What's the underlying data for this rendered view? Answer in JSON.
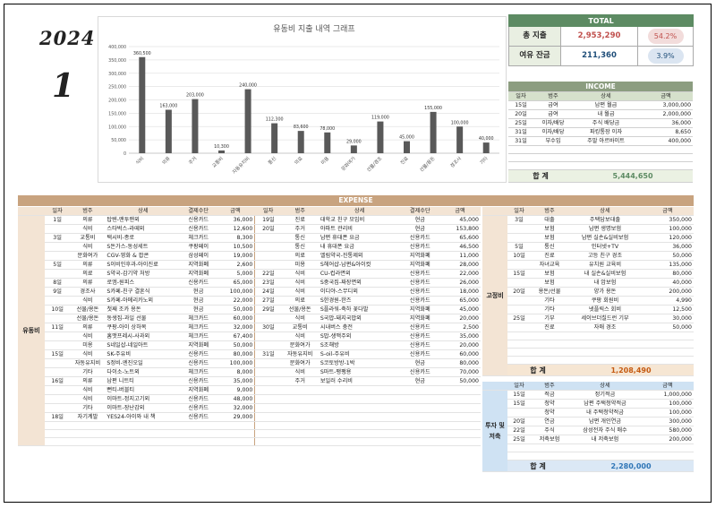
{
  "header": {
    "year": "2024",
    "month": "1"
  },
  "chart_data": {
    "type": "bar",
    "title": "유동비 지출 내역 그래프",
    "categories": [
      "식비",
      "의류",
      "주거",
      "교통비",
      "자동유지비",
      "통신",
      "의료",
      "미용",
      "문화여가",
      "선물/경조",
      "진료",
      "선물/용돈",
      "경조사",
      "기타"
    ],
    "values": [
      360500,
      163000,
      203000,
      10300,
      240000,
      112300,
      83600,
      78000,
      29000,
      119000,
      45000,
      155000,
      100000,
      40000
    ],
    "value_labels": [
      "360,500",
      "163,000",
      "203,000",
      "10,300",
      "240,000",
      "112,300",
      "83,600",
      "78,000",
      "29,000",
      "119,000",
      "45,000",
      "155,000",
      "100,000",
      "40,000"
    ],
    "yticks": [
      "0",
      "50,000",
      "100,000",
      "150,000",
      "200,000",
      "250,000",
      "300,000",
      "350,000",
      "400,000"
    ],
    "ylim": [
      0,
      400000
    ],
    "bar_color": "#595959",
    "grid": true
  },
  "total": {
    "title": "TOTAL",
    "rows": [
      {
        "label": "총 지출",
        "amount": "2,953,290",
        "pct": "54.2%",
        "amount_color": "#c0504d",
        "pill_color": "#f2dcdb"
      },
      {
        "label": "여유 잔금",
        "amount": "211,360",
        "pct": "3.9%",
        "amount_color": "#1f4e79",
        "pill_color": "#dbe5f1"
      }
    ]
  },
  "income": {
    "title": "INCOME",
    "cols": [
      "일자",
      "범주",
      "상세",
      "금액"
    ],
    "rows": [
      [
        "15일",
        "급여",
        "남편 월급",
        "3,000,000"
      ],
      [
        "20일",
        "급여",
        "내 월급",
        "2,000,000"
      ],
      [
        "25일",
        "이자/배당",
        "주식 배당금",
        "36,000"
      ],
      [
        "31일",
        "이자/배당",
        "파킹통장 이자",
        "8,650"
      ],
      [
        "31일",
        "부수입",
        "주말 아르바이트",
        "400,000"
      ],
      [
        "",
        "",
        "",
        ""
      ],
      [
        "",
        "",
        "",
        ""
      ],
      [
        "",
        "",
        "",
        ""
      ]
    ],
    "total_label": "합  계",
    "total_value": "5,444,650"
  },
  "expense": {
    "title": "EXPENSE",
    "category": "유동비",
    "cols": [
      "일자",
      "범주",
      "상세",
      "결제수단",
      "금액"
    ],
    "left": [
      [
        "1일",
        "의류",
        "탑텐-맨투맨외",
        "신용카드",
        "36,000"
      ],
      [
        "",
        "식비",
        "스타벅스-라떼외",
        "신용카드",
        "12,600"
      ],
      [
        "3일",
        "교통비",
        "택시비-종로",
        "체크카드",
        "8,300"
      ],
      [
        "",
        "식비",
        "S돈가스-동성세트",
        "쿠팡페이",
        "10,500"
      ],
      [
        "",
        "문화여가",
        "CGV-영화 & 팝콘",
        "삼성페이",
        "19,000"
      ],
      [
        "5일",
        "의류",
        "S이비인후과-아이진료",
        "지역화폐",
        "2,600"
      ],
      [
        "",
        "의료",
        "S약국-감기약 처방",
        "지역화폐",
        "5,000"
      ],
      [
        "8일",
        "의류",
        "로엠-원피스",
        "신용카드",
        "65,000"
      ],
      [
        "9일",
        "경조사",
        "S카페-친구 결혼식",
        "현금",
        "100,000"
      ],
      [
        "",
        "식비",
        "S카페-아메리카노외",
        "현금",
        "22,000"
      ],
      [
        "10일",
        "선물/용돈",
        "첫째 조카 용돈",
        "현금",
        "50,000"
      ],
      [
        "",
        "선물/용돈",
        "동생집-과일 선물",
        "체크카드",
        "60,000"
      ],
      [
        "11일",
        "의류",
        "쿠팡-아이 상하복",
        "체크카드",
        "32,000"
      ],
      [
        "",
        "식비",
        "홈맷프레시-사과외",
        "체크카드",
        "67,400"
      ],
      [
        "",
        "미용",
        "S네일샵-네일아트",
        "지역화폐",
        "50,000"
      ],
      [
        "15일",
        "식비",
        "SK-주유비",
        "신용카드",
        "80,000"
      ],
      [
        "",
        "자동유지비",
        "S정비-엔진오일",
        "신용카드",
        "100,000"
      ],
      [
        "",
        "기타",
        "다이소-노트외",
        "체크카드",
        "8,000"
      ],
      [
        "16일",
        "의류",
        "남편 니트티",
        "신용카드",
        "35,000"
      ],
      [
        "",
        "식비",
        "뻔티-버블티",
        "지역화폐",
        "9,000"
      ],
      [
        "",
        "식비",
        "이마트-정지고기외",
        "신용카드",
        "48,000"
      ],
      [
        "",
        "기타",
        "이마트-장난감외",
        "신용카드",
        "32,000"
      ],
      [
        "18일",
        "자기계발",
        "YES24-아이와 내 책",
        "신용카드",
        "29,000"
      ],
      [
        "",
        "",
        "",
        "",
        ""
      ],
      [
        "",
        "",
        "",
        "",
        ""
      ],
      [
        "",
        "",
        "",
        "",
        ""
      ]
    ],
    "right": [
      [
        "19일",
        "진료",
        "대학교 친구 모임비",
        "현금",
        "45,000"
      ],
      [
        "20일",
        "주거",
        "아파트 관리비",
        "현금",
        "153,800"
      ],
      [
        "",
        "통신",
        "남편 휴대폰 요금",
        "신용카드",
        "65,600"
      ],
      [
        "",
        "통신",
        "내 휴대폰 요금",
        "신용카드",
        "46,500"
      ],
      [
        "",
        "의료",
        "엘림약국-진통제외",
        "지역화폐",
        "11,000"
      ],
      [
        "",
        "미용",
        "S헤어샵-남편&아이컷",
        "지역화폐",
        "28,000"
      ],
      [
        "22일",
        "식비",
        "CU-컵라면외",
        "신용카드",
        "22,000"
      ],
      [
        "23일",
        "식비",
        "S중국집-짜장면외",
        "신용카드",
        "26,000"
      ],
      [
        "24일",
        "식비",
        "이디야-스무디외",
        "신용카드",
        "18,000"
      ],
      [
        "27일",
        "의료",
        "S한경원-한즈",
        "신용카드",
        "65,000"
      ],
      [
        "29일",
        "선물/용돈",
        "S플라워-축하 꽃다발",
        "지역화폐",
        "45,000"
      ],
      [
        "",
        "식비",
        "S국밥-돼지국밥외",
        "지역화폐",
        "20,000"
      ],
      [
        "30일",
        "교통비",
        "시내버스 충전",
        "신용카드",
        "2,500"
      ],
      [
        "",
        "식비",
        "S밥-생맥주외",
        "신용카드",
        "35,000"
      ],
      [
        "",
        "문화여가",
        "S조해방",
        "신용카드",
        "20,000"
      ],
      [
        "31일",
        "자동유지비",
        "S-oil-주유비",
        "신용카드",
        "60,000"
      ],
      [
        "",
        "문화여가",
        "S코토방방-1박",
        "현금",
        "80,000"
      ],
      [
        "",
        "식비",
        "S마트-팽팽용",
        "신용카드",
        "70,000"
      ],
      [
        "",
        "주거",
        "보일러 수리비",
        "현금",
        "50,000"
      ],
      [
        "",
        "",
        "",
        "",
        ""
      ],
      [
        "",
        "",
        "",
        "",
        ""
      ],
      [
        "",
        "",
        "",
        "",
        ""
      ],
      [
        "",
        "",
        "",
        "",
        ""
      ],
      [
        "",
        "",
        "",
        "",
        ""
      ],
      [
        "",
        "",
        "",
        "",
        ""
      ],
      [
        "",
        "",
        "",
        "",
        ""
      ]
    ]
  },
  "fixed": {
    "category": "고정비",
    "cols": [
      "일자",
      "범주",
      "상세",
      "금액"
    ],
    "rows": [
      [
        "3일",
        "대출",
        "주택담보대출",
        "350,000"
      ],
      [
        "",
        "보험",
        "남편 생명보험",
        "100,000"
      ],
      [
        "",
        "보험",
        "남편 실손&실비보험",
        "120,000"
      ],
      [
        "5일",
        "통신",
        "인터넷+TV",
        "36,000"
      ],
      [
        "10일",
        "진료",
        "고등 친구 경조",
        "50,000"
      ],
      [
        "",
        "자녀교육",
        "유치원 교육비",
        "135,000"
      ],
      [
        "15일",
        "보험",
        "내 실손&실비보험",
        "80,000"
      ],
      [
        "",
        "보험",
        "내 암보험",
        "40,000"
      ],
      [
        "20일",
        "용돈/선물",
        "양가 용돈",
        "200,000"
      ],
      [
        "",
        "기타",
        "쿠팡 회원비",
        "4,990"
      ],
      [
        "",
        "기타",
        "넷플릭스 회비",
        "12,500"
      ],
      [
        "25일",
        "기부",
        "세이브더칠드런 기부",
        "30,000"
      ],
      [
        "",
        "진료",
        "자매 경조",
        "50,000"
      ],
      [
        "",
        "",
        "",
        ""
      ],
      [
        "",
        "",
        "",
        ""
      ],
      [
        "",
        "",
        "",
        ""
      ],
      [
        "",
        "",
        "",
        ""
      ]
    ],
    "total_label": "합  계",
    "total_value": "1,208,490"
  },
  "savings": {
    "category": "투자 및 저축",
    "cols": [
      "일자",
      "범주",
      "상세",
      "금액"
    ],
    "rows": [
      [
        "15일",
        "적금",
        "정기적금",
        "1,000,000"
      ],
      [
        "15일",
        "청약",
        "남편 주택청약적금",
        "100,000"
      ],
      [
        "",
        "청약",
        "내 주택청약적금",
        "100,000"
      ],
      [
        "20일",
        "연금",
        "남편 개인연금",
        "300,000"
      ],
      [
        "22일",
        "주식",
        "삼성전자 주식 매수",
        "580,000"
      ],
      [
        "25일",
        "저축보험",
        "내 저축보험",
        "200,000"
      ],
      [
        "",
        "",
        "",
        ""
      ],
      [
        "",
        "",
        "",
        ""
      ]
    ],
    "total_label": "합  계",
    "total_value": "2,280,000"
  }
}
